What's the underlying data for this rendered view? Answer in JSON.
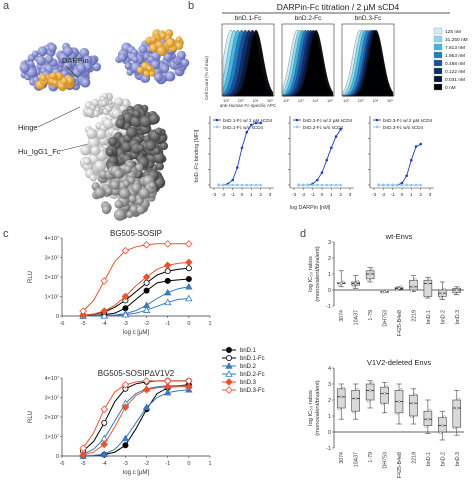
{
  "panel_labels": [
    "a",
    "b",
    "c",
    "d"
  ],
  "panel_a": {
    "labels": {
      "darpin": "DARPin",
      "hinge": "Hinge",
      "fc": "Hu_IgG1_Fc"
    }
  },
  "panel_b": {
    "title": "DARPin-Fc titration / 2 µM sCD4",
    "histograms": {
      "titles": [
        "bnD.1-Fc",
        "bnD.2-Fc",
        "bnD.3-Fc"
      ],
      "ylabel": "Cell Count (% of max)",
      "xlabel": "anti-Human Fc-specific APC",
      "x_ticks": [
        "10²",
        "10³",
        "10⁴",
        "10⁵"
      ],
      "legend": [
        {
          "label": "125 nM",
          "color": "#cfeef8"
        },
        {
          "label": "31.250 nM",
          "color": "#8fd7ef"
        },
        {
          "label": "7.813 nM",
          "color": "#43b6e0"
        },
        {
          "label": "1.953 nM",
          "color": "#1e7fc4"
        },
        {
          "label": "0.488 nM",
          "color": "#1a4f9c"
        },
        {
          "label": "0.122 nM",
          "color": "#0f2d6b"
        },
        {
          "label": "0.031 nM",
          "color": "#0a1840"
        },
        {
          "label": "0 nM",
          "color": "#000000"
        }
      ]
    },
    "binding": {
      "ylabel": "bnD.-Fc binding [MFI]",
      "xlabel": "log DARPin [nM]",
      "x_ticks": [
        "-3",
        "-2",
        "-1",
        "0",
        "1",
        "2",
        "3"
      ]
    }
  },
  "panel_c": {
    "ylabel": "RLU",
    "xlabel": "log c [µM]",
    "x_ticks": [
      "-6",
      "-5",
      "-4",
      "-3",
      "-2",
      "-1",
      "0",
      "1"
    ],
    "y_ticks": [
      "0",
      "1×10⁷",
      "2×10⁷",
      "3×10⁷",
      "4×10⁷"
    ],
    "legend": [
      {
        "label": "bnD.1",
        "color": "#000000",
        "marker": "filled-circle"
      },
      {
        "label": "bnD.1-Fc",
        "color": "#000000",
        "marker": "open-circle"
      },
      {
        "label": "bnD.2",
        "color": "#3a78c0",
        "marker": "filled-triangle"
      },
      {
        "label": "bnD.2-Fc",
        "color": "#3a78c0",
        "marker": "open-triangle"
      },
      {
        "label": "bnD.3",
        "color": "#e8532f",
        "marker": "filled-diamond"
      },
      {
        "label": "bnD.3-Fc",
        "color": "#e8532f",
        "marker": "open-diamond"
      }
    ]
  },
  "panel_d": {
    "ylabel_lines": [
      "log IC₅₀ ratios",
      "(monovalent/bivalent)"
    ],
    "categories": [
      "3074",
      "10A37",
      "1-79",
      "DH753",
      "F425-B4e8",
      "2219",
      "bnD.1",
      "bnD.2",
      "bnD.3"
    ],
    "y_ticks_top": [
      "-1",
      "0",
      "1",
      "2",
      "3"
    ],
    "y_ticks_bottom": [
      "-1",
      "0",
      "1",
      "2",
      "3",
      "4"
    ]
  },
  "chart_data": [
    {
      "type": "line",
      "panel": "b",
      "title": "bnD.1-Fc",
      "xlabel": "log DARPin [nM]",
      "ylabel": "bnD.-Fc binding [MFI]",
      "series": [
        {
          "name": "bnD.1-Fc w/ 2 µM sCD4",
          "color": "#1f3fbf",
          "x": [
            -2.5,
            -2,
            -1.5,
            -1,
            -0.5,
            0,
            0.5,
            1,
            1.5,
            2
          ],
          "y": [
            0,
            0,
            0.02,
            0.08,
            0.28,
            0.6,
            0.85,
            0.97,
            1.0,
            1.0
          ]
        },
        {
          "name": "bnD.1-Fc w/o sCD4",
          "color": "#8fc6ee",
          "x": [
            -2.5,
            -2,
            -1.5,
            -1,
            -0.5,
            0,
            0.5,
            1,
            1.5,
            2
          ],
          "y": [
            0,
            0,
            0,
            0,
            0,
            0,
            0,
            0,
            0,
            0
          ]
        }
      ]
    },
    {
      "type": "line",
      "panel": "b",
      "title": "bnD.2-Fc",
      "xlabel": "log DARPin [nM]",
      "series": [
        {
          "name": "bnD.2-Fc w/ 2 µM sCD4",
          "color": "#1f3fbf",
          "x": [
            -2.5,
            -2,
            -1.5,
            -1,
            -0.5,
            0,
            0.5,
            1,
            1.5,
            2
          ],
          "y": [
            0,
            0,
            0,
            0.02,
            0.08,
            0.2,
            0.4,
            0.6,
            0.78,
            0.9
          ]
        },
        {
          "name": "bnD.2-Fc w/o sCD4",
          "color": "#8fc6ee",
          "x": [
            -2.5,
            -2,
            -1.5,
            -1,
            -0.5,
            0,
            0.5,
            1,
            1.5,
            2
          ],
          "y": [
            0,
            0,
            0,
            0,
            0,
            0,
            0,
            0,
            0,
            0
          ]
        }
      ]
    },
    {
      "type": "line",
      "panel": "b",
      "title": "bnD.3-Fc",
      "xlabel": "log DARPin [nM]",
      "series": [
        {
          "name": "bnD.3-Fc w/ 2 µM sCD4",
          "color": "#1f3fbf",
          "x": [
            -2.5,
            -2,
            -1.5,
            -1,
            -0.5,
            0,
            0.5,
            1,
            1.5,
            2
          ],
          "y": [
            0,
            0,
            0,
            0,
            0,
            0.03,
            0.15,
            0.4,
            0.62,
            0.66
          ]
        },
        {
          "name": "bnD.3-Fc w/o sCD4",
          "color": "#8fc6ee",
          "x": [
            -2.5,
            -2,
            -1.5,
            -1,
            -0.5,
            0,
            0.5,
            1,
            1.5,
            2
          ],
          "y": [
            0,
            0,
            0,
            0,
            0,
            0,
            0,
            0,
            0,
            0
          ]
        }
      ]
    },
    {
      "type": "line",
      "panel": "c",
      "title": "BG505-SOSIP",
      "xlabel": "log c [µM]",
      "ylabel": "RLU",
      "xlim": [
        -6,
        1
      ],
      "ylim": [
        0,
        40000000
      ],
      "series": [
        {
          "name": "bnD.1",
          "x": [
            -5,
            -4.5,
            -4,
            -3.5,
            -3,
            -2.5,
            -2,
            -1.5,
            -1,
            -0.5,
            0
          ],
          "y": [
            200000,
            300000,
            600000,
            1500000,
            4000000,
            8500000,
            13000000,
            17000000,
            18000000,
            18500000,
            19000000
          ]
        },
        {
          "name": "bnD.1-Fc",
          "x": [
            -5,
            -4.5,
            -4,
            -3.5,
            -3,
            -2.5,
            -2,
            -1.5,
            -1,
            -0.5,
            0
          ],
          "y": [
            400000,
            900000,
            2000000,
            4500000,
            8000000,
            12500000,
            17000000,
            21000000,
            23000000,
            24000000,
            24500000
          ]
        },
        {
          "name": "bnD.2",
          "x": [
            -5,
            -4.5,
            -4,
            -3.5,
            -3,
            -2.5,
            -2,
            -1.5,
            -1,
            -0.5,
            0
          ],
          "y": [
            0,
            100000,
            200000,
            500000,
            1200000,
            2800000,
            5500000,
            9000000,
            12000000,
            14000000,
            15000000
          ]
        },
        {
          "name": "bnD.2-Fc",
          "x": [
            -5,
            -4.5,
            -4,
            -3.5,
            -3,
            -2.5,
            -2,
            -1.5,
            -1,
            -0.5,
            0
          ],
          "y": [
            0,
            50000,
            100000,
            300000,
            700000,
            1500000,
            3000000,
            5000000,
            7000000,
            8500000,
            9000000
          ]
        },
        {
          "name": "bnD.3",
          "x": [
            -5,
            -4.5,
            -4,
            -3.5,
            -3,
            -2.5,
            -2,
            -1.5,
            -1,
            -0.5,
            0
          ],
          "y": [
            400000,
            1000000,
            2500000,
            5500000,
            10000000,
            15500000,
            20000000,
            24000000,
            26000000,
            27000000,
            27500000
          ]
        },
        {
          "name": "bnD.3-Fc",
          "x": [
            -5,
            -4.5,
            -4,
            -3.5,
            -3,
            -2.5,
            -2,
            -1.5,
            -1,
            -0.5,
            0
          ],
          "y": [
            2500000,
            8000000,
            18000000,
            28000000,
            33500000,
            35500000,
            36500000,
            37000000,
            37000000,
            37000000,
            37000000
          ]
        }
      ]
    },
    {
      "type": "line",
      "panel": "c",
      "title": "BG505-SOSIP∆V1V2",
      "xlabel": "log c [µM]",
      "ylabel": "RLU",
      "xlim": [
        -6,
        1
      ],
      "ylim": [
        0,
        40000000
      ],
      "series": [
        {
          "name": "bnD.1",
          "x": [
            -5,
            -4.5,
            -4,
            -3.5,
            -3,
            -2.5,
            -2,
            -1.5,
            -1,
            -0.5,
            0
          ],
          "y": [
            0,
            200000,
            700000,
            2000000,
            5500000,
            14000000,
            24000000,
            32000000,
            35000000,
            36000000,
            36500000
          ]
        },
        {
          "name": "bnD.1-Fc",
          "x": [
            -5,
            -4.5,
            -4,
            -3.5,
            -3,
            -2.5,
            -2,
            -1.5,
            -1,
            -0.5,
            0
          ],
          "y": [
            2500000,
            7500000,
            17000000,
            28000000,
            34500000,
            37000000,
            38000000,
            38500000,
            38500000,
            38500000,
            38500000
          ]
        },
        {
          "name": "bnD.2",
          "x": [
            -5,
            -4.5,
            -4,
            -3.5,
            -3,
            -2.5,
            -2,
            -1.5,
            -1,
            -0.5,
            0
          ],
          "y": [
            0,
            300000,
            1000000,
            3500000,
            9000000,
            17000000,
            25000000,
            30000000,
            32500000,
            33500000,
            34000000
          ]
        },
        {
          "name": "bnD.2-Fc",
          "x": [
            -5,
            -4.5,
            -4,
            -3.5,
            -3,
            -2.5,
            -2,
            -1.5,
            -1,
            -0.5,
            0
          ],
          "y": [
            1000000,
            3500000,
            9000000,
            18000000,
            27000000,
            32000000,
            34500000,
            35500000,
            36000000,
            36000000,
            36000000
          ]
        },
        {
          "name": "bnD.3",
          "x": [
            -5,
            -4.5,
            -4,
            -3.5,
            -3,
            -2.5,
            -2,
            -1.5,
            -1,
            -0.5,
            0
          ],
          "y": [
            600000,
            2000000,
            6000000,
            15000000,
            25000000,
            31000000,
            34000000,
            35000000,
            35500000,
            35500000,
            35500000
          ]
        },
        {
          "name": "bnD.3-Fc",
          "x": [
            -5,
            -4.5,
            -4,
            -3.5,
            -3,
            -2.5,
            -2,
            -1.5,
            -1,
            -0.5,
            0
          ],
          "y": [
            4000000,
            12000000,
            24000000,
            33000000,
            36500000,
            38000000,
            38500000,
            38500000,
            38500000,
            38500000,
            38500000
          ]
        }
      ]
    },
    {
      "type": "box",
      "panel": "d",
      "title": "wt-Envs",
      "ylabel": "log IC₅₀ ratios (monovalent/bivalent)",
      "ylim": [
        -1,
        3
      ],
      "categories": [
        "3074",
        "10A37",
        "1-79",
        "DH753",
        "F425-B4e8",
        "2219",
        "bnD.1",
        "bnD.2",
        "bnD.3"
      ],
      "boxes": [
        {
          "min": 0.2,
          "q1": 0.4,
          "median": 0.4,
          "q3": 0.45,
          "max": 1.2
        },
        {
          "min": 0.1,
          "q1": 0.3,
          "median": 0.4,
          "q3": 0.5,
          "max": 0.9
        },
        {
          "min": 0.5,
          "q1": 0.7,
          "median": 1.0,
          "q3": 1.2,
          "max": 1.4
        },
        {
          "min": -0.1,
          "q1": -0.1,
          "median": -0.1,
          "q3": -0.1,
          "max": -0.1
        },
        {
          "min": 0.0,
          "q1": 0.05,
          "median": 0.1,
          "q3": 0.15,
          "max": 0.2
        },
        {
          "min": -0.1,
          "q1": 0.0,
          "median": 0.2,
          "q3": 0.6,
          "max": 0.9
        },
        {
          "min": -0.5,
          "q1": -0.4,
          "median": 0.4,
          "q3": 0.6,
          "max": 0.8
        },
        {
          "min": -0.6,
          "q1": -0.4,
          "median": -0.2,
          "q3": 0.0,
          "max": 0.5
        },
        {
          "min": -0.3,
          "q1": -0.15,
          "median": 0.0,
          "q3": 0.1,
          "max": 0.2
        }
      ]
    },
    {
      "type": "box",
      "panel": "d",
      "title": "V1V2-deleted Envs",
      "ylabel": "log IC₅₀ ratios (monovalent/bivalent)",
      "ylim": [
        -1,
        4
      ],
      "categories": [
        "3074",
        "10A37",
        "1-79",
        "DH753",
        "F425-B4e8",
        "2219",
        "bnD.1",
        "bnD.2",
        "bnD.3"
      ],
      "boxes": [
        {
          "min": 0.8,
          "q1": 1.5,
          "median": 2.2,
          "q3": 2.7,
          "max": 3.0
        },
        {
          "min": 0.8,
          "q1": 1.3,
          "median": 2.1,
          "q3": 2.6,
          "max": 3.0
        },
        {
          "min": 1.5,
          "q1": 2.0,
          "median": 2.6,
          "q3": 3.0,
          "max": 3.2
        },
        {
          "min": 1.2,
          "q1": 1.8,
          "median": 2.4,
          "q3": 2.8,
          "max": 3.1
        },
        {
          "min": 0.5,
          "q1": 1.2,
          "median": 1.9,
          "q3": 2.6,
          "max": 3.0
        },
        {
          "min": 0.5,
          "q1": 1.0,
          "median": 1.8,
          "q3": 2.3,
          "max": 2.7
        },
        {
          "min": -0.1,
          "q1": 0.4,
          "median": 0.8,
          "q3": 1.3,
          "max": 2.0
        },
        {
          "min": -0.5,
          "q1": 0.0,
          "median": 0.4,
          "q3": 0.9,
          "max": 1.3
        },
        {
          "min": -0.2,
          "q1": 0.3,
          "median": 1.5,
          "q3": 2.0,
          "max": 2.6
        }
      ]
    }
  ]
}
